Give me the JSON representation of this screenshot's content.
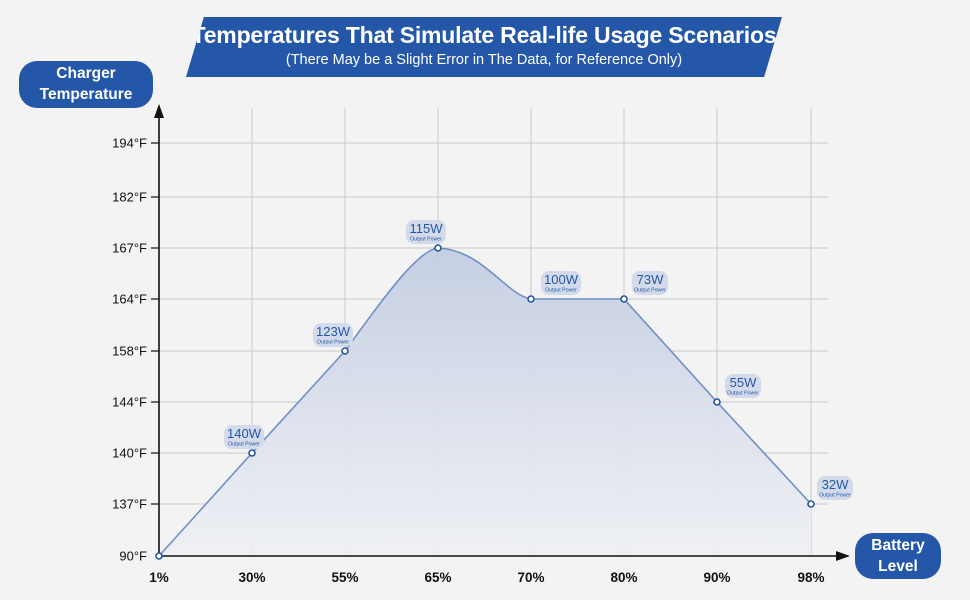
{
  "header": {
    "title": "Temperatures That Simulate Real-life Usage Scenarios",
    "subtitle": "(There May be a Slight Error in The Data, for Reference Only)"
  },
  "axes": {
    "y_label_line1": "Charger",
    "y_label_line2": "Temperature",
    "x_label_line1": "Battery",
    "x_label_line2": "Level"
  },
  "colors": {
    "accent": "#2457a7",
    "line": "#6f8fc6",
    "grid": "#c9c9c9",
    "fill_top": "#c3cde2",
    "fill_bottom": "#eef0f4",
    "label_bg": "#d3dbeb",
    "label_text": "#2457a7"
  },
  "chart_data": {
    "type": "area",
    "title": "Temperatures That Simulate Real-life Usage Scenarios",
    "subtitle": "(There May be a Slight Error in The Data, for Reference Only)",
    "xlabel": "Battery Level",
    "ylabel": "Charger Temperature",
    "categories": [
      "1%",
      "30%",
      "55%",
      "65%",
      "70%",
      "80%",
      "90%",
      "98%"
    ],
    "y_ticks": [
      "90°F",
      "137°F",
      "140°F",
      "144°F",
      "158°F",
      "164°F",
      "167°F",
      "182°F",
      "194°F"
    ],
    "y_tick_values": [
      90,
      137,
      140,
      144,
      158,
      164,
      167,
      182,
      194
    ],
    "series": [
      {
        "name": "Charger Temperature",
        "values": [
          90,
          140,
          158,
          167,
          164,
          164,
          144,
          137
        ]
      }
    ],
    "point_labels": [
      null,
      {
        "power": "140W",
        "caption": "Output Power"
      },
      {
        "power": "123W",
        "caption": "Output Power"
      },
      {
        "power": "115W",
        "caption": "Output Power"
      },
      {
        "power": "100W",
        "caption": "Output Power"
      },
      {
        "power": "73W",
        "caption": "Output Power"
      },
      {
        "power": "55W",
        "caption": "Output Power"
      },
      {
        "power": "32W",
        "caption": "Output Power"
      }
    ],
    "grid": true
  }
}
